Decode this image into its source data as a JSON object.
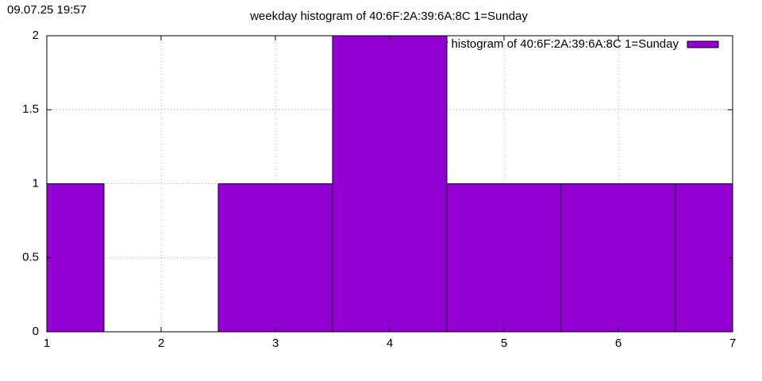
{
  "chart_data": {
    "type": "histogram",
    "timestamp": "09.07.25 19:57",
    "title": "weekday histogram of 40:6F:2A:39:6A:8C 1=Sunday",
    "bins": [
      0.5,
      1.5,
      2.5,
      3.5,
      4.5,
      5.5,
      6.5,
      7.5
    ],
    "series": [
      {
        "name": "weekday histogram of 40:6F:2A:39:6A:8C 1=Sunday",
        "color": "#9400d3",
        "values": [
          1,
          0,
          1,
          2,
          1,
          1,
          1
        ]
      }
    ],
    "xlim": [
      1,
      7
    ],
    "xticks": [
      1,
      2,
      3,
      4,
      5,
      6,
      7
    ],
    "ylim": [
      0,
      2
    ],
    "yticks": [
      0,
      0.5,
      1,
      1.5,
      2
    ],
    "grid": true,
    "legend": "top-right"
  }
}
